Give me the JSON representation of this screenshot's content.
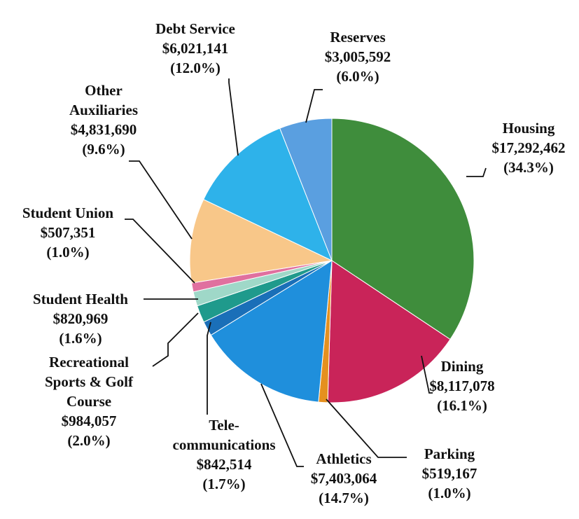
{
  "chart_data": {
    "type": "pie",
    "title": "",
    "start_angle_deg": 0,
    "direction": "clockwise",
    "slices": [
      {
        "key": "housing",
        "label": "Housing",
        "amount": "$17,292,462",
        "pct_label": "(34.3%)",
        "value": 17292462,
        "percent": 34.3,
        "color": "#3f8d3c"
      },
      {
        "key": "dining",
        "label": "Dining",
        "amount": "$8,117,078",
        "pct_label": "(16.1%)",
        "value": 8117078,
        "percent": 16.1,
        "color": "#c92459"
      },
      {
        "key": "parking",
        "label": "Parking",
        "amount": "$519,167",
        "pct_label": "(1.0%)",
        "value": 519167,
        "percent": 1.0,
        "color": "#e5901f"
      },
      {
        "key": "athletics",
        "label": "Athletics",
        "amount": "$7,403,064",
        "pct_label": "(14.7%)",
        "value": 7403064,
        "percent": 14.7,
        "color": "#1f8fdc"
      },
      {
        "key": "telecom",
        "label": "Tele-\ncommunications",
        "amount": "$842,514",
        "pct_label": "(1.7%)",
        "value": 842514,
        "percent": 1.7,
        "color": "#1a6fb8"
      },
      {
        "key": "recsports",
        "label": "Recreational\nSports & Golf\nCourse",
        "amount": "$984,057",
        "pct_label": "(2.0%)",
        "value": 984057,
        "percent": 2.0,
        "color": "#1f9a8c"
      },
      {
        "key": "health",
        "label": "Student Health",
        "amount": "$820,969",
        "pct_label": "(1.6%)",
        "value": 820969,
        "percent": 1.6,
        "color": "#9fd8c8"
      },
      {
        "key": "union",
        "label": "Student Union",
        "amount": "$507,351",
        "pct_label": "(1.0%)",
        "value": 507351,
        "percent": 1.0,
        "color": "#e0709f"
      },
      {
        "key": "other",
        "label": "Other\nAuxiliaries",
        "amount": "$4,831,690",
        "pct_label": "(9.6%)",
        "value": 4831690,
        "percent": 9.6,
        "color": "#f8c789"
      },
      {
        "key": "debt",
        "label": "Debt Service",
        "amount": "$6,021,141",
        "pct_label": "(12.0%)",
        "value": 6021141,
        "percent": 12.0,
        "color": "#2eb2ea"
      },
      {
        "key": "reserves",
        "label": "Reserves",
        "amount": "$3,005,592",
        "pct_label": "(6.0%)",
        "value": 3005592,
        "percent": 6.0,
        "color": "#5a9fe0"
      }
    ]
  }
}
